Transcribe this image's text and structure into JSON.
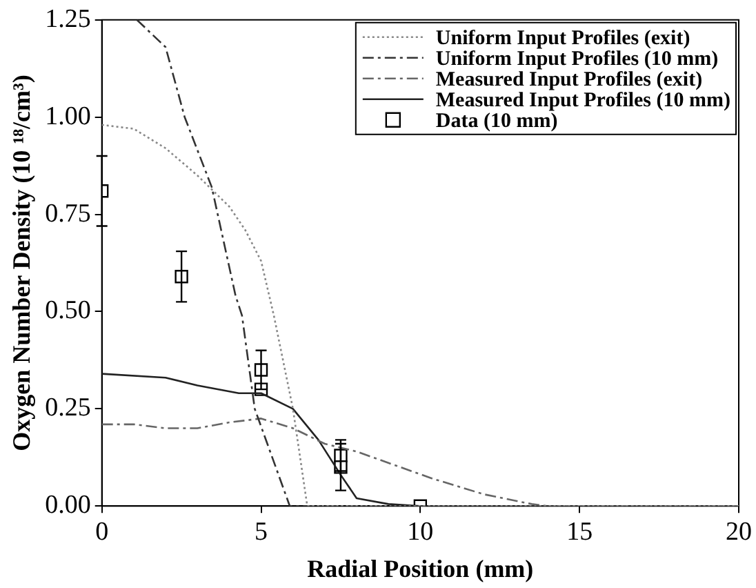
{
  "chart_data": {
    "type": "line",
    "xlabel": "Radial Position (mm)",
    "ylabel": "Oxygen Number Density (10 ¹⁸/cm³)",
    "xlim": [
      0,
      20
    ],
    "xticks": [
      0,
      5,
      10,
      15,
      20
    ],
    "ylim": [
      0,
      1.25
    ],
    "yticks": [
      {
        "value": 0,
        "label": "0.00"
      },
      {
        "value": 0.25,
        "label": "0.25"
      },
      {
        "value": 0.5,
        "label": "0.50"
      },
      {
        "value": 0.75,
        "label": "0.75"
      },
      {
        "value": 1,
        "label": "1.00"
      },
      {
        "value": 1.25,
        "label": "1.25"
      }
    ],
    "grid": false,
    "legend": "top right",
    "series": [
      {
        "name": "Uniform Input Profiles (exit)",
        "color": "#888888",
        "line_style": "dotted",
        "marker": "none",
        "x": [
          0,
          1,
          2,
          3,
          3.5,
          4,
          4.5,
          5,
          5.4,
          6,
          6.45,
          20
        ],
        "values": [
          0.98,
          0.97,
          0.92,
          0.85,
          0.81,
          0.77,
          0.71,
          0.63,
          0.49,
          0.25,
          0,
          0
        ]
      },
      {
        "name": "Uniform Input Profiles (10 mm)",
        "color": "#333333",
        "line_style": "dashed",
        "marker": "none",
        "x": [
          1.1,
          2,
          2.6,
          3.45,
          4.2,
          4.4,
          4.8,
          5.9,
          20
        ],
        "values": [
          1.25,
          1.18,
          1.0,
          0.82,
          0.54,
          0.49,
          0.25,
          0,
          0
        ]
      },
      {
        "name": "Measured Input Profiles (exit)",
        "color": "#666666",
        "line_style": "dashed",
        "marker": "none",
        "x": [
          0,
          1,
          2,
          3,
          4,
          5,
          6,
          7,
          7.5,
          8,
          10.4,
          12,
          13.5,
          14,
          20
        ],
        "values": [
          0.21,
          0.21,
          0.2,
          0.2,
          0.215,
          0.225,
          0.2,
          0.16,
          0.15,
          0.14,
          0.07,
          0.03,
          0.005,
          0,
          0
        ]
      },
      {
        "name": "Measured Input Profiles (10 mm)",
        "color": "#222222",
        "line_style": "solid",
        "marker": "none",
        "x": [
          0,
          2,
          3,
          4.3,
          5,
          6,
          6.8,
          7.5,
          8,
          9,
          10,
          20
        ],
        "values": [
          0.34,
          0.33,
          0.31,
          0.29,
          0.29,
          0.25,
          0.17,
          0.08,
          0.02,
          0.005,
          0,
          0
        ]
      },
      {
        "name": "Data (10 mm)",
        "type": "scatter",
        "color": "#000000",
        "marker": "square",
        "x": [
          0,
          2.5,
          5,
          5,
          7.5,
          7.5,
          10
        ],
        "values": [
          0.81,
          0.59,
          0.35,
          0.3,
          0.13,
          0.1,
          0
        ],
        "errors": [
          0.09,
          0.065,
          0.05,
          null,
          0.04,
          0.06,
          null
        ]
      }
    ]
  }
}
